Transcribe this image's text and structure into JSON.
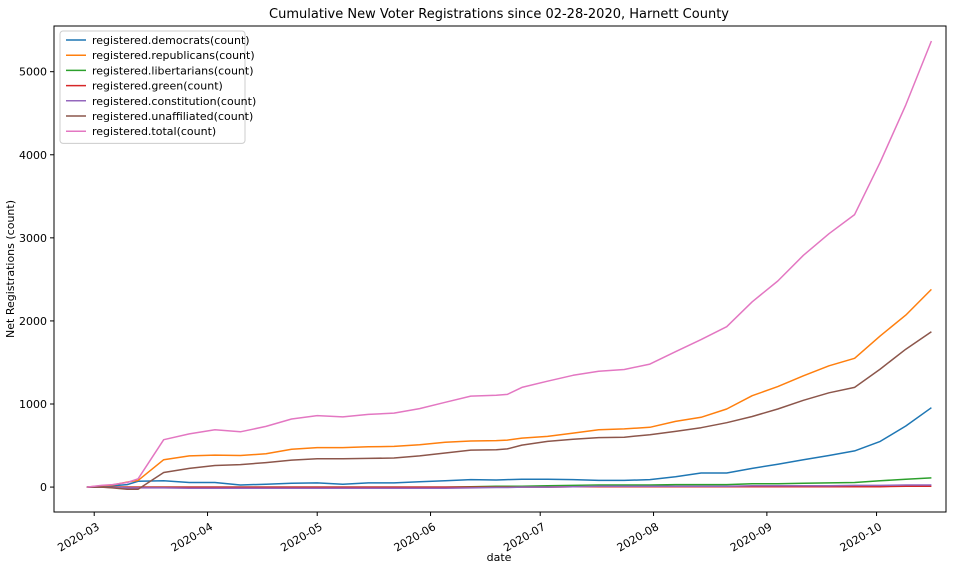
{
  "chart_data": {
    "type": "line",
    "title": "Cumulative New Voter Registrations since 02-28-2020, Harnett County",
    "xlabel": "date",
    "ylabel": "Net Registrations (count)",
    "xlim": [
      "2020-02-19",
      "2020-10-20"
    ],
    "ylim": [
      -300,
      5550
    ],
    "x_ticks": [
      "2020-03-01",
      "2020-04-01",
      "2020-05-01",
      "2020-06-01",
      "2020-07-01",
      "2020-08-01",
      "2020-09-01",
      "2020-10-01"
    ],
    "x_tick_labels": [
      "2020-03",
      "2020-04",
      "2020-05",
      "2020-06",
      "2020-07",
      "2020-08",
      "2020-09",
      "2020-10"
    ],
    "y_ticks": [
      0,
      1000,
      2000,
      3000,
      4000,
      5000
    ],
    "y_tick_labels": [
      "0",
      "1000",
      "2000",
      "3000",
      "4000",
      "5000"
    ],
    "legend_position": "upper-left",
    "grid": false,
    "x": [
      "2020-02-28",
      "2020-03-03",
      "2020-03-06",
      "2020-03-10",
      "2020-03-13",
      "2020-03-20",
      "2020-03-27",
      "2020-04-03",
      "2020-04-10",
      "2020-04-17",
      "2020-04-24",
      "2020-05-01",
      "2020-05-08",
      "2020-05-15",
      "2020-05-22",
      "2020-05-29",
      "2020-06-05",
      "2020-06-12",
      "2020-06-19",
      "2020-06-22",
      "2020-06-26",
      "2020-07-03",
      "2020-07-10",
      "2020-07-17",
      "2020-07-24",
      "2020-07-31",
      "2020-08-07",
      "2020-08-14",
      "2020-08-21",
      "2020-08-28",
      "2020-09-04",
      "2020-09-11",
      "2020-09-18",
      "2020-09-25",
      "2020-10-02",
      "2020-10-09",
      "2020-10-16"
    ],
    "series": [
      {
        "name": "registered.democrats(count)",
        "color": "#1f77b4",
        "values": [
          0,
          10,
          15,
          30,
          70,
          75,
          55,
          55,
          25,
          35,
          45,
          50,
          35,
          50,
          50,
          65,
          75,
          90,
          85,
          90,
          95,
          95,
          90,
          80,
          80,
          90,
          125,
          170,
          170,
          225,
          275,
          330,
          380,
          435,
          550,
          735,
          955
        ]
      },
      {
        "name": "registered.republicans(count)",
        "color": "#ff7f0e",
        "values": [
          0,
          15,
          25,
          60,
          80,
          330,
          375,
          385,
          380,
          400,
          455,
          475,
          475,
          485,
          490,
          510,
          540,
          555,
          560,
          565,
          590,
          610,
          650,
          690,
          700,
          720,
          790,
          840,
          940,
          1100,
          1210,
          1340,
          1460,
          1550,
          1820,
          2070,
          2380
        ]
      },
      {
        "name": "registered.libertarians(count)",
        "color": "#2ca02c",
        "values": [
          0,
          0,
          0,
          0,
          0,
          0,
          0,
          0,
          0,
          0,
          0,
          0,
          0,
          0,
          0,
          0,
          0,
          5,
          10,
          10,
          10,
          15,
          20,
          25,
          25,
          25,
          30,
          30,
          30,
          40,
          40,
          45,
          50,
          55,
          75,
          95,
          110
        ]
      },
      {
        "name": "registered.green(count)",
        "color": "#d62728",
        "values": [
          0,
          0,
          0,
          0,
          0,
          0,
          0,
          0,
          0,
          0,
          0,
          0,
          0,
          0,
          0,
          0,
          0,
          0,
          0,
          0,
          0,
          0,
          5,
          5,
          5,
          5,
          5,
          5,
          5,
          5,
          5,
          5,
          5,
          5,
          5,
          10,
          10
        ]
      },
      {
        "name": "registered.constitution(count)",
        "color": "#9467bd",
        "values": [
          0,
          0,
          -5,
          -10,
          -10,
          -10,
          -15,
          -15,
          -15,
          -15,
          -15,
          -15,
          -15,
          -15,
          -15,
          -15,
          -15,
          -10,
          -5,
          -5,
          0,
          0,
          5,
          10,
          10,
          10,
          10,
          10,
          10,
          15,
          15,
          15,
          15,
          20,
          20,
          25,
          25
        ]
      },
      {
        "name": "registered.unaffiliated(count)",
        "color": "#8c564b",
        "values": [
          0,
          0,
          -10,
          -25,
          -25,
          175,
          225,
          260,
          270,
          295,
          325,
          340,
          340,
          345,
          350,
          375,
          410,
          445,
          450,
          460,
          505,
          550,
          575,
          595,
          600,
          630,
          670,
          715,
          775,
          850,
          940,
          1045,
          1135,
          1200,
          1420,
          1660,
          1870
        ]
      },
      {
        "name": "registered.total(count)",
        "color": "#e377c2",
        "values": [
          0,
          20,
          30,
          55,
          100,
          570,
          640,
          690,
          665,
          730,
          820,
          860,
          845,
          875,
          890,
          945,
          1020,
          1095,
          1105,
          1115,
          1200,
          1275,
          1345,
          1395,
          1415,
          1480,
          1630,
          1775,
          1930,
          2230,
          2480,
          2790,
          3050,
          3280,
          3910,
          4600,
          5370
        ]
      }
    ]
  }
}
